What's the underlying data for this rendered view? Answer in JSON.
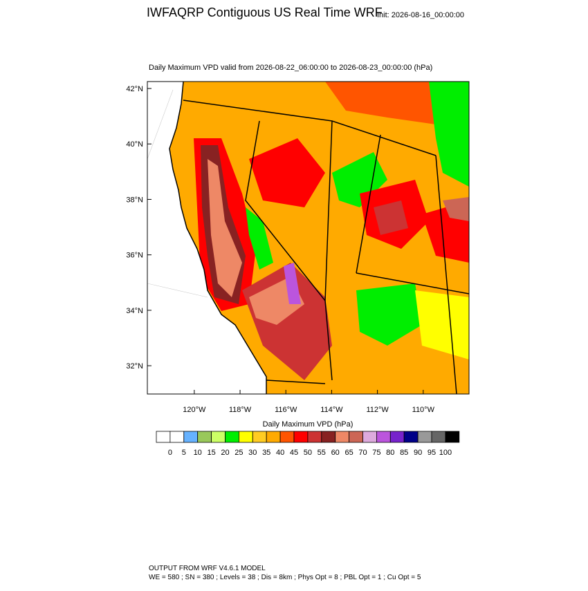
{
  "header": {
    "title": "IWFAQRP Contiguous US Real Time WRF",
    "init": "Init: 2026-08-16_00:00:00"
  },
  "map": {
    "subtitle": "Daily Maximum VPD valid from 2026-08-22_06:00:00 to 2026-08-23_00:00:00   (hPa)",
    "xlim": [
      -122.05,
      -108.0
    ],
    "ylim": [
      30.98,
      42.25
    ],
    "xticks": [
      {
        "value": -120,
        "label": "120°W"
      },
      {
        "value": -118,
        "label": "118°W"
      },
      {
        "value": -116,
        "label": "116°W"
      },
      {
        "value": -114,
        "label": "114°W"
      },
      {
        "value": -112,
        "label": "112°W"
      },
      {
        "value": -110,
        "label": "110°W"
      }
    ],
    "yticks": [
      {
        "value": 32,
        "label": "32°N"
      },
      {
        "value": 34,
        "label": "34°N"
      },
      {
        "value": 36,
        "label": "36°N"
      },
      {
        "value": 38,
        "label": "38°N"
      },
      {
        "value": 40,
        "label": "40°N"
      },
      {
        "value": 42,
        "label": "42°N"
      }
    ]
  },
  "colorbar": {
    "label": "Daily Maximum VPD  (hPa)",
    "colors": [
      "#ffffff",
      "#ffffff",
      "#66b2ff",
      "#99c85a",
      "#ccff66",
      "#00ee00",
      "#ffff00",
      "#ffcc22",
      "#ffaa00",
      "#ff5500",
      "#ff0000",
      "#cc3333",
      "#882222",
      "#ee8866",
      "#cc6655",
      "#ddaadd",
      "#bb55dd",
      "#7722cc",
      "#000088",
      "#999999",
      "#666666",
      "#000000"
    ],
    "ticks": [
      0,
      5,
      10,
      15,
      20,
      25,
      30,
      35,
      40,
      45,
      50,
      55,
      60,
      65,
      70,
      75,
      80,
      85,
      90,
      95,
      100
    ]
  },
  "footer": {
    "line1": "OUTPUT FROM WRF V4.6.1 MODEL",
    "line2": "WE = 580 ; SN = 380 ; Levels = 38 ; Dis = 8km ; Phys Opt = 8 ; PBL Opt = 1 ; Cu Opt = 5"
  }
}
